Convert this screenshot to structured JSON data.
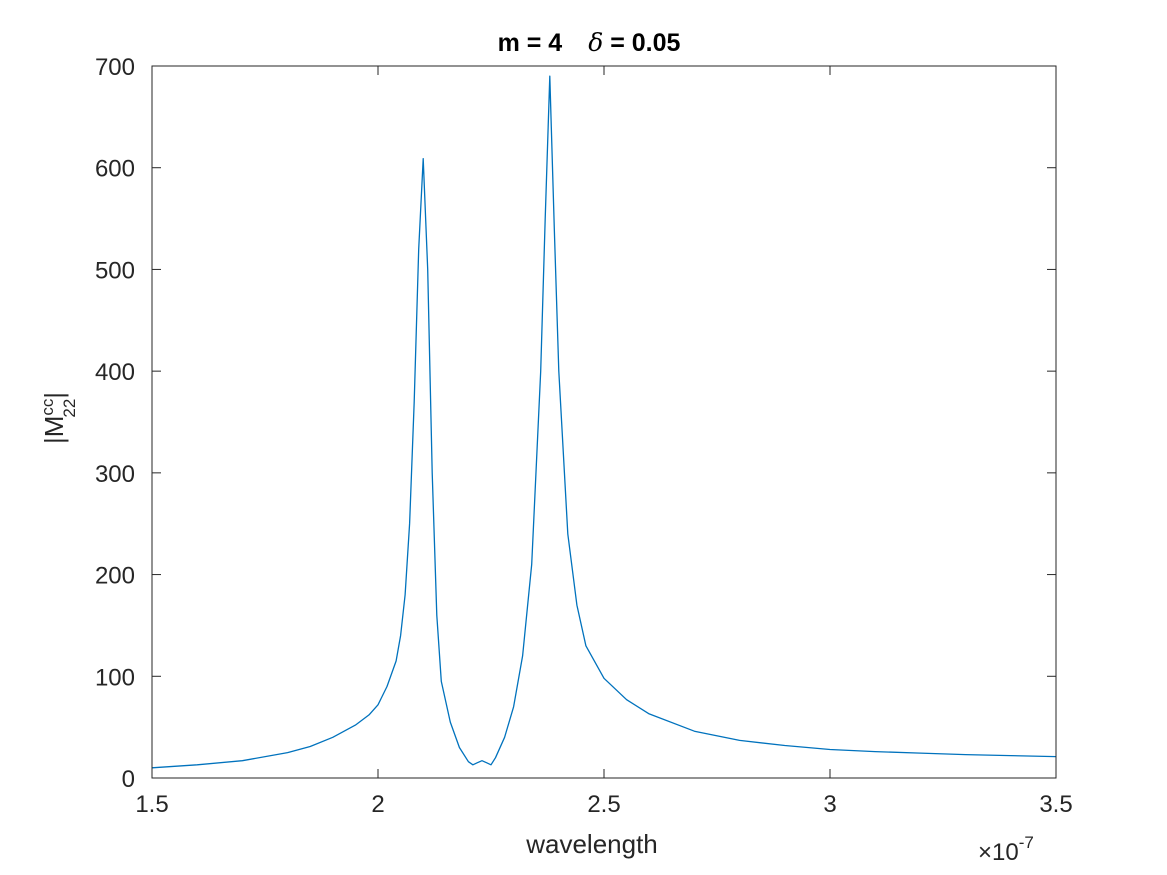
{
  "chart_data": {
    "type": "line",
    "title": {
      "part1": "m = 4",
      "symbol": "δ",
      "part2": " = 0.05"
    },
    "xlabel": "wavelength",
    "ylabel": {
      "base": "|M",
      "superscript": "cc",
      "subscript": "22",
      "close": "|"
    },
    "x_exponent": {
      "prefix": "×10",
      "power": "-7"
    },
    "xlim": [
      1.5,
      3.5
    ],
    "ylim": [
      0,
      700
    ],
    "x_ticks": [
      {
        "value": 1.5,
        "label": "1.5"
      },
      {
        "value": 2,
        "label": "2"
      },
      {
        "value": 2.5,
        "label": "2.5"
      },
      {
        "value": 3,
        "label": "3"
      },
      {
        "value": 3.5,
        "label": "3.5"
      }
    ],
    "y_ticks": [
      {
        "value": 0,
        "label": "0"
      },
      {
        "value": 100,
        "label": "100"
      },
      {
        "value": 200,
        "label": "200"
      },
      {
        "value": 300,
        "label": "300"
      },
      {
        "value": 400,
        "label": "400"
      },
      {
        "value": 500,
        "label": "500"
      },
      {
        "value": 600,
        "label": "600"
      },
      {
        "value": 700,
        "label": "700"
      }
    ],
    "grid": false,
    "box": true,
    "series": [
      {
        "color": "#0072BD",
        "points": [
          [
            1.5,
            10
          ],
          [
            1.6,
            13
          ],
          [
            1.7,
            17
          ],
          [
            1.8,
            25
          ],
          [
            1.85,
            31
          ],
          [
            1.9,
            40
          ],
          [
            1.95,
            52
          ],
          [
            1.98,
            62
          ],
          [
            2.0,
            72
          ],
          [
            2.02,
            90
          ],
          [
            2.04,
            115
          ],
          [
            2.05,
            140
          ],
          [
            2.06,
            180
          ],
          [
            2.07,
            250
          ],
          [
            2.08,
            370
          ],
          [
            2.09,
            520
          ],
          [
            2.1,
            609
          ],
          [
            2.11,
            500
          ],
          [
            2.12,
            300
          ],
          [
            2.13,
            160
          ],
          [
            2.14,
            95
          ],
          [
            2.16,
            55
          ],
          [
            2.18,
            30
          ],
          [
            2.2,
            16
          ],
          [
            2.21,
            13
          ],
          [
            2.22,
            15
          ],
          [
            2.23,
            17
          ],
          [
            2.24,
            15
          ],
          [
            2.25,
            13
          ],
          [
            2.26,
            20
          ],
          [
            2.28,
            40
          ],
          [
            2.3,
            70
          ],
          [
            2.32,
            120
          ],
          [
            2.34,
            210
          ],
          [
            2.36,
            400
          ],
          [
            2.37,
            550
          ],
          [
            2.38,
            690
          ],
          [
            2.39,
            540
          ],
          [
            2.4,
            400
          ],
          [
            2.42,
            240
          ],
          [
            2.44,
            170
          ],
          [
            2.46,
            130
          ],
          [
            2.5,
            98
          ],
          [
            2.55,
            77
          ],
          [
            2.6,
            63
          ],
          [
            2.7,
            46
          ],
          [
            2.8,
            37
          ],
          [
            2.9,
            32
          ],
          [
            3.0,
            28
          ],
          [
            3.1,
            26
          ],
          [
            3.2,
            24.5
          ],
          [
            3.3,
            23
          ],
          [
            3.4,
            22
          ],
          [
            3.5,
            21
          ]
        ]
      }
    ]
  }
}
